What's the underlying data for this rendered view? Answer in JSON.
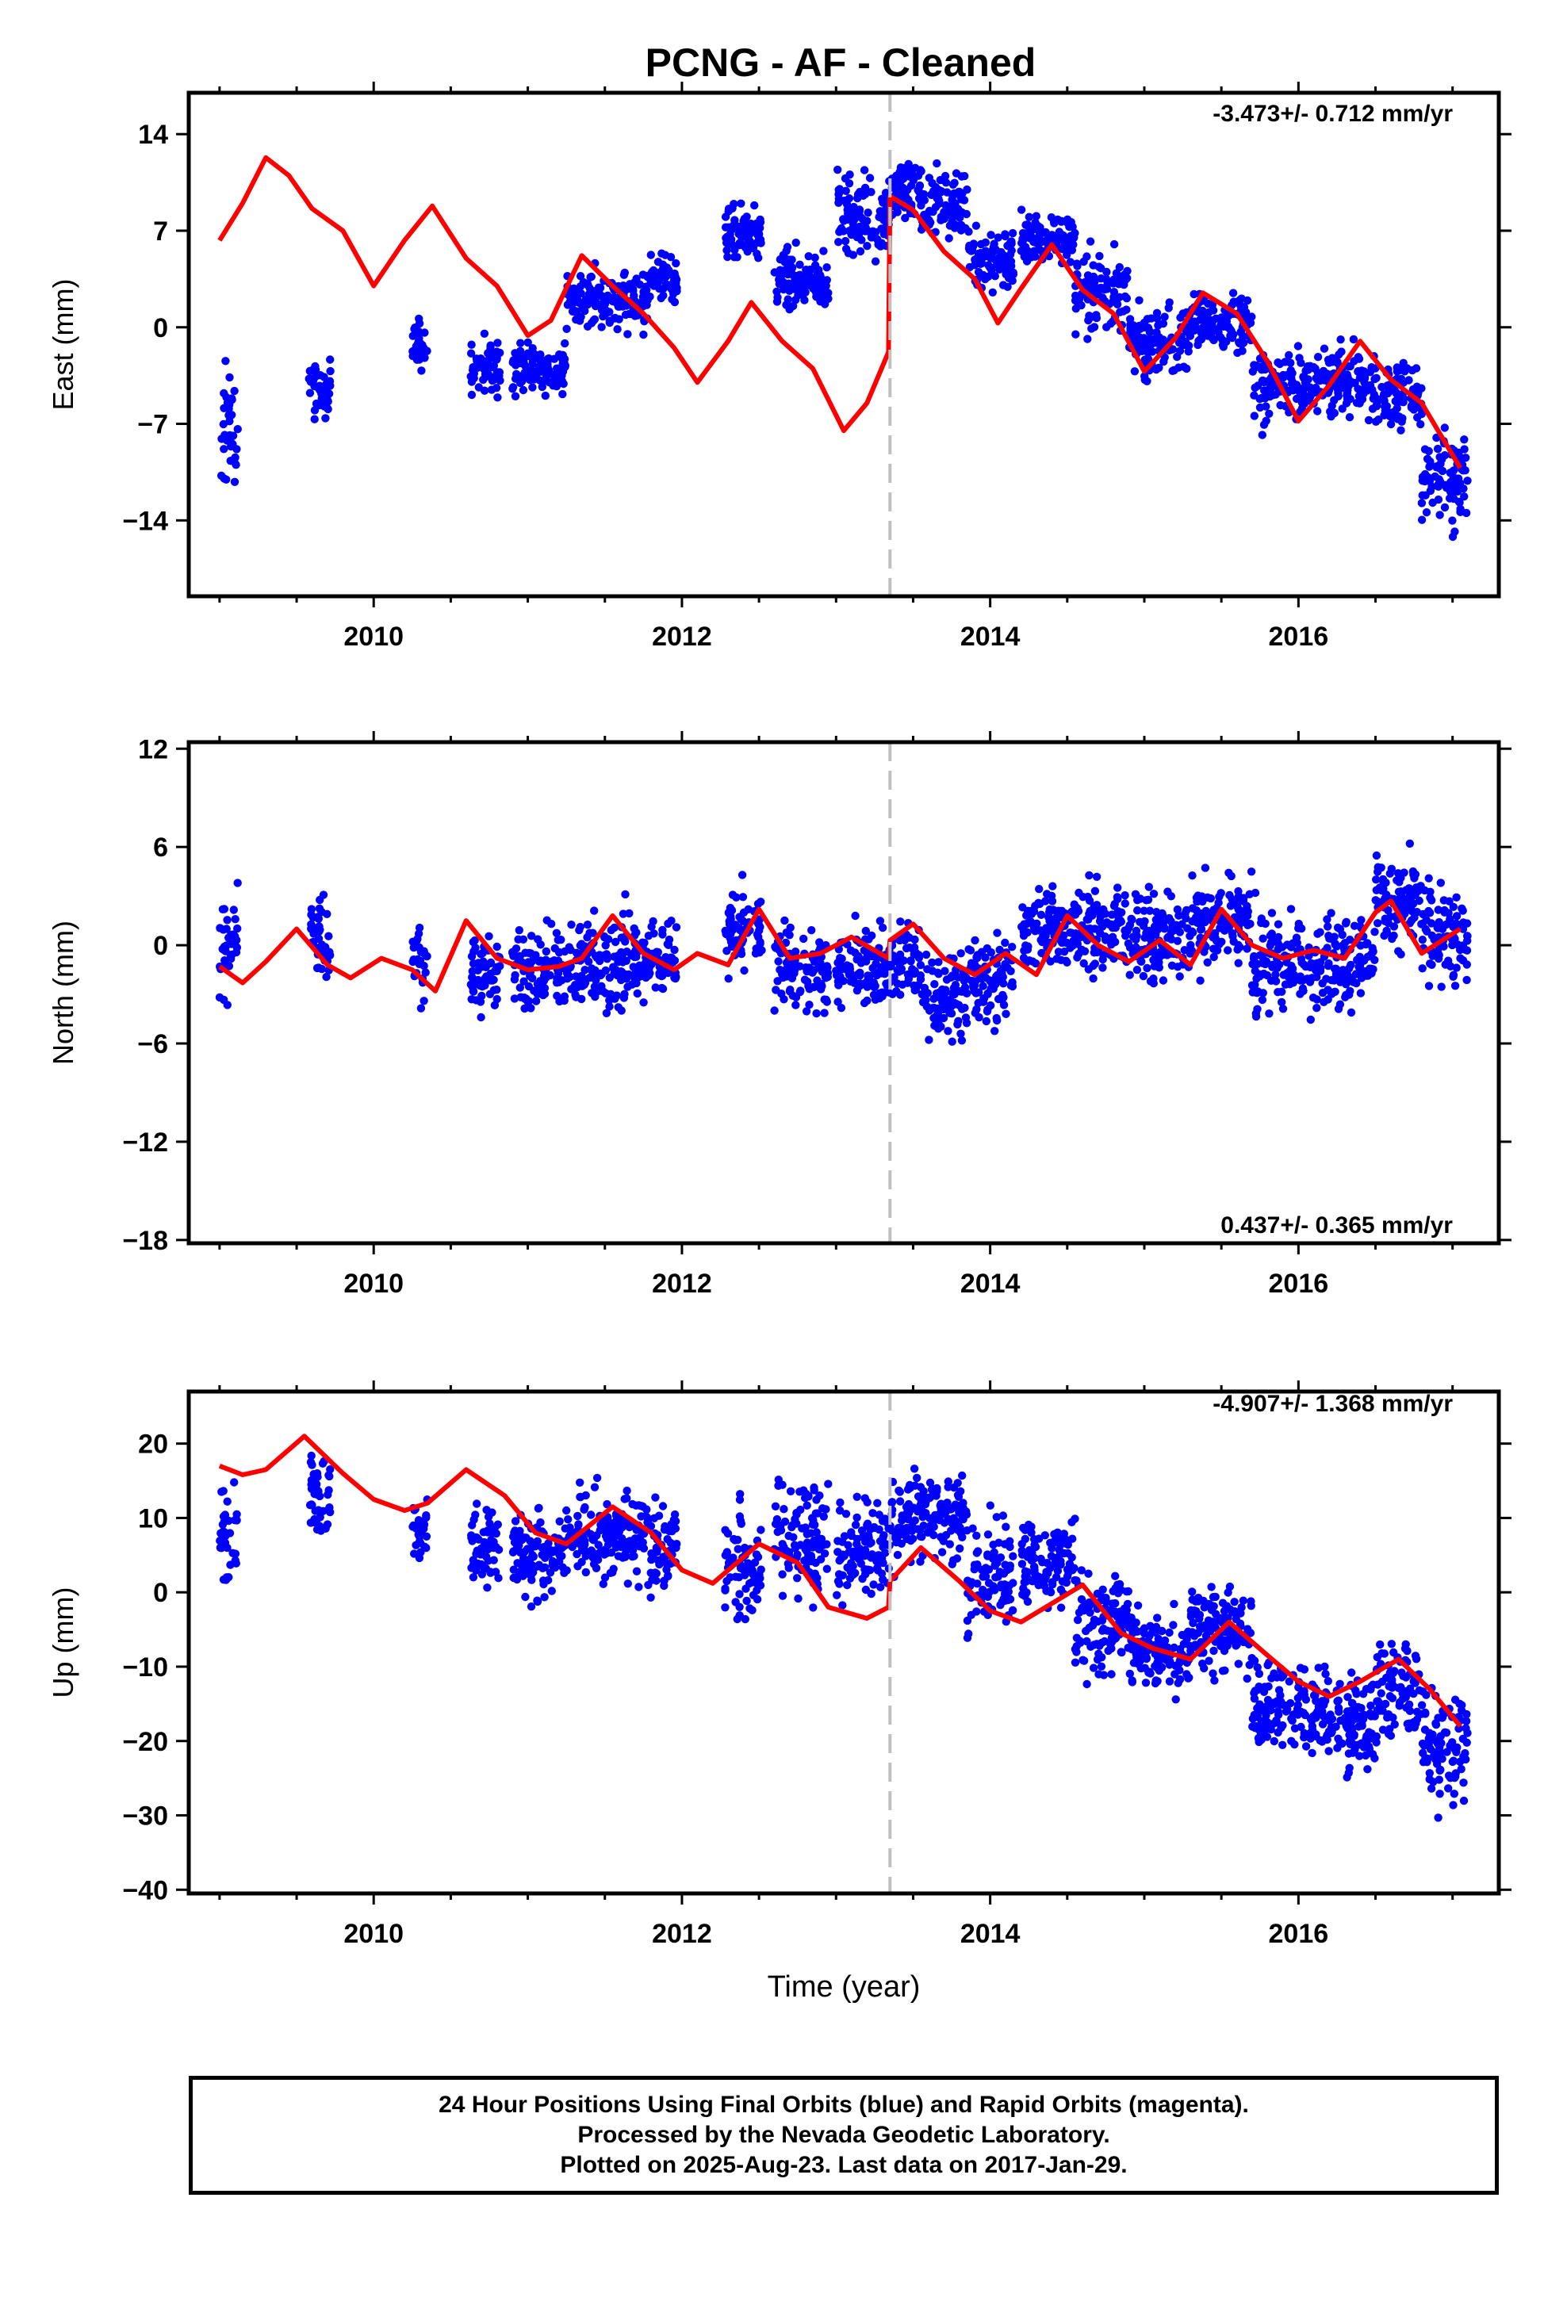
{
  "title": "PCNG  - AF - Cleaned",
  "caption": {
    "line1": "24 Hour Positions Using Final Orbits (blue) and Rapid Orbits (magenta).",
    "line2": "Processed by the Nevada Geodetic Laboratory.",
    "line3": "Plotted on 2025-Aug-23. Last data on 2017-Jan-29."
  },
  "colors": {
    "points": "#0000ff",
    "model": "#ff0000",
    "break_line": "#c0c0c0",
    "frame": "#000000"
  },
  "chart_data": [
    {
      "type": "scatter",
      "ylabel": "East (mm)",
      "xlabel": "",
      "rate_text": "-3.473+/- 0.712 mm/yr",
      "xlim": [
        2008.8,
        2017.3
      ],
      "ylim": [
        -19.5,
        17.0
      ],
      "xticks": [
        2010,
        2012,
        2014,
        2016
      ],
      "yticks": [
        14,
        7,
        0,
        -7,
        -14
      ],
      "ytick_labels": [
        "14",
        "7",
        "0",
        "−7",
        "−14"
      ],
      "break_epoch": 2013.35,
      "series": [
        {
          "kind": "points",
          "segments": [
            {
              "x": [
                2009.0,
                2009.12
              ],
              "center": -7.5,
              "spread": 4.0
            },
            {
              "x": [
                2009.58,
                2009.72
              ],
              "center": -4.5,
              "spread": 1.7
            },
            {
              "x": [
                2010.25,
                2010.35
              ],
              "center": -1.3,
              "spread": 1.6
            },
            {
              "x": [
                2010.63,
                2010.82
              ],
              "center": -2.8,
              "spread": 1.8
            },
            {
              "x": [
                2010.9,
                2011.25
              ],
              "center": -3.0,
              "spread": 1.6
            },
            {
              "x": [
                2011.25,
                2011.78
              ],
              "center": 2.0,
              "spread": 1.8
            },
            {
              "x": [
                2011.78,
                2011.97
              ],
              "center": 3.5,
              "spread": 1.5
            },
            {
              "x": [
                2012.28,
                2012.52
              ],
              "center": 6.5,
              "spread": 1.8
            },
            {
              "x": [
                2012.6,
                2012.95
              ],
              "center": 3.5,
              "spread": 1.9
            },
            {
              "x": [
                2013.0,
                2013.35
              ],
              "center": 8.0,
              "spread": 2.5
            },
            {
              "x": [
                2013.35,
                2013.55
              ],
              "center": 10.0,
              "spread": 1.6
            },
            {
              "x": [
                2013.55,
                2013.85
              ],
              "center": 9.0,
              "spread": 2.3
            },
            {
              "x": [
                2013.85,
                2014.15
              ],
              "center": 5.0,
              "spread": 2.2
            },
            {
              "x": [
                2014.2,
                2014.55
              ],
              "center": 6.5,
              "spread": 1.6
            },
            {
              "x": [
                2014.55,
                2014.9
              ],
              "center": 2.5,
              "spread": 2.3
            },
            {
              "x": [
                2014.9,
                2015.3
              ],
              "center": -1.0,
              "spread": 2.1
            },
            {
              "x": [
                2015.3,
                2015.7
              ],
              "center": 0.5,
              "spread": 1.8
            },
            {
              "x": [
                2015.7,
                2016.05
              ],
              "center": -4.5,
              "spread": 2.3
            },
            {
              "x": [
                2016.05,
                2016.5
              ],
              "center": -4.0,
              "spread": 2.0
            },
            {
              "x": [
                2016.5,
                2016.8
              ],
              "center": -5.0,
              "spread": 2.2
            },
            {
              "x": [
                2016.8,
                2017.1
              ],
              "center": -11.0,
              "spread": 3.0
            }
          ]
        },
        {
          "kind": "model",
          "x": [
            2009.0,
            2009.15,
            2009.3,
            2009.45,
            2009.6,
            2009.8,
            2010.0,
            2010.2,
            2010.38,
            2010.6,
            2010.8,
            2011.0,
            2011.15,
            2011.35,
            2011.55,
            2011.75,
            2011.95,
            2012.1,
            2012.3,
            2012.45,
            2012.65,
            2012.85,
            2013.05,
            2013.2,
            2013.34,
            2013.35,
            2013.5,
            2013.7,
            2013.9,
            2014.05,
            2014.2,
            2014.4,
            2014.6,
            2014.8,
            2015.0,
            2015.2,
            2015.38,
            2015.6,
            2015.8,
            2016.0,
            2016.2,
            2016.4,
            2016.6,
            2016.8,
            2017.05
          ],
          "y": [
            6.3,
            9.0,
            12.3,
            11.0,
            8.6,
            7.0,
            3.0,
            6.3,
            8.8,
            5.0,
            3.0,
            -0.6,
            0.5,
            5.2,
            3.0,
            1.0,
            -1.5,
            -4.0,
            -1.0,
            1.8,
            -1.0,
            -3.0,
            -7.5,
            -5.5,
            -1.8,
            9.5,
            8.5,
            5.5,
            3.5,
            0.3,
            2.8,
            6.0,
            2.7,
            1.0,
            -3.2,
            -0.8,
            2.5,
            1.0,
            -2.5,
            -6.8,
            -4.2,
            -1.0,
            -3.8,
            -5.5,
            -10.2
          ]
        }
      ]
    },
    {
      "type": "scatter",
      "ylabel": "North (mm)",
      "xlabel": "",
      "rate_text": "0.437+/- 0.365 mm/yr",
      "xlim": [
        2008.8,
        2017.3
      ],
      "ylim": [
        -18.2,
        12.4
      ],
      "xticks": [
        2010,
        2012,
        2014,
        2016
      ],
      "yticks": [
        12,
        6,
        0,
        -6,
        -12,
        -18
      ],
      "ytick_labels": [
        "12",
        "6",
        "0",
        "−6",
        "−12",
        "−18"
      ],
      "break_epoch": 2013.35,
      "series": [
        {
          "kind": "points",
          "segments": [
            {
              "x": [
                2009.0,
                2009.12
              ],
              "center": 0.0,
              "spread": 3.0
            },
            {
              "x": [
                2009.58,
                2009.72
              ],
              "center": 0.5,
              "spread": 2.3
            },
            {
              "x": [
                2010.25,
                2010.35
              ],
              "center": -1.0,
              "spread": 2.3
            },
            {
              "x": [
                2010.63,
                2010.82
              ],
              "center": -1.5,
              "spread": 2.0
            },
            {
              "x": [
                2010.9,
                2011.25
              ],
              "center": -1.5,
              "spread": 2.0
            },
            {
              "x": [
                2011.25,
                2011.78
              ],
              "center": -1.0,
              "spread": 2.6
            },
            {
              "x": [
                2011.78,
                2011.97
              ],
              "center": -1.0,
              "spread": 2.0
            },
            {
              "x": [
                2012.28,
                2012.52
              ],
              "center": 1.0,
              "spread": 2.4
            },
            {
              "x": [
                2012.6,
                2012.95
              ],
              "center": -1.5,
              "spread": 2.2
            },
            {
              "x": [
                2013.0,
                2013.35
              ],
              "center": -1.5,
              "spread": 2.0
            },
            {
              "x": [
                2013.35,
                2013.55
              ],
              "center": -1.0,
              "spread": 2.0
            },
            {
              "x": [
                2013.55,
                2013.85
              ],
              "center": -3.0,
              "spread": 2.2
            },
            {
              "x": [
                2013.85,
                2014.15
              ],
              "center": -2.0,
              "spread": 2.2
            },
            {
              "x": [
                2014.2,
                2014.55
              ],
              "center": 1.0,
              "spread": 2.2
            },
            {
              "x": [
                2014.55,
                2014.9
              ],
              "center": 1.0,
              "spread": 2.4
            },
            {
              "x": [
                2014.9,
                2015.3
              ],
              "center": 0.5,
              "spread": 2.4
            },
            {
              "x": [
                2015.3,
                2015.7
              ],
              "center": 1.5,
              "spread": 2.4
            },
            {
              "x": [
                2015.7,
                2016.05
              ],
              "center": -1.0,
              "spread": 2.6
            },
            {
              "x": [
                2016.05,
                2016.5
              ],
              "center": -1.0,
              "spread": 2.6
            },
            {
              "x": [
                2016.5,
                2016.8
              ],
              "center": 2.5,
              "spread": 2.2
            },
            {
              "x": [
                2016.8,
                2017.1
              ],
              "center": 0.5,
              "spread": 2.8
            }
          ]
        },
        {
          "kind": "model",
          "x": [
            2009.0,
            2009.15,
            2009.3,
            2009.5,
            2009.7,
            2009.85,
            2010.05,
            2010.25,
            2010.4,
            2010.6,
            2010.8,
            2011.0,
            2011.2,
            2011.35,
            2011.55,
            2011.75,
            2011.95,
            2012.1,
            2012.3,
            2012.5,
            2012.7,
            2012.9,
            2013.1,
            2013.34,
            2013.35,
            2013.5,
            2013.7,
            2013.9,
            2014.1,
            2014.3,
            2014.5,
            2014.7,
            2014.9,
            2015.1,
            2015.3,
            2015.5,
            2015.7,
            2015.9,
            2016.1,
            2016.3,
            2016.5,
            2016.6,
            2016.8,
            2017.05
          ],
          "y": [
            -1.3,
            -2.3,
            -1.0,
            1.0,
            -1.2,
            -2.0,
            -0.8,
            -1.5,
            -2.8,
            1.5,
            -0.8,
            -1.5,
            -1.3,
            -0.8,
            1.8,
            -0.5,
            -1.5,
            -0.5,
            -1.2,
            2.2,
            -0.8,
            -0.5,
            0.5,
            -0.8,
            0.3,
            1.3,
            -0.8,
            -1.8,
            -0.5,
            -1.8,
            1.8,
            0.0,
            -1.0,
            0.3,
            -1.2,
            2.2,
            0.0,
            -0.8,
            -0.3,
            -0.8,
            2.0,
            2.7,
            -0.5,
            1.0
          ]
        }
      ]
    },
    {
      "type": "scatter",
      "ylabel": "Up (mm)",
      "xlabel": "Time (year)",
      "rate_text": "-4.907+/- 1.368 mm/yr",
      "xlim": [
        2008.8,
        2017.3
      ],
      "ylim": [
        -40.5,
        27.0
      ],
      "xticks": [
        2010,
        2012,
        2014,
        2016
      ],
      "yticks": [
        20,
        10,
        0,
        -10,
        -20,
        -30,
        -40
      ],
      "ytick_labels": [
        "20",
        "10",
        "0",
        "−10",
        "−20",
        "−30",
        "−40"
      ],
      "break_epoch": 2013.35,
      "series": [
        {
          "kind": "points",
          "segments": [
            {
              "x": [
                2009.0,
                2009.12
              ],
              "center": 8.0,
              "spread": 6.0
            },
            {
              "x": [
                2009.58,
                2009.72
              ],
              "center": 13.0,
              "spread": 5.0
            },
            {
              "x": [
                2010.25,
                2010.35
              ],
              "center": 8.0,
              "spread": 5.5
            },
            {
              "x": [
                2010.63,
                2010.82
              ],
              "center": 6.0,
              "spread": 5.0
            },
            {
              "x": [
                2010.9,
                2011.25
              ],
              "center": 5.0,
              "spread": 5.0
            },
            {
              "x": [
                2011.25,
                2011.78
              ],
              "center": 8.0,
              "spread": 5.5
            },
            {
              "x": [
                2011.78,
                2011.97
              ],
              "center": 6.0,
              "spread": 5.0
            },
            {
              "x": [
                2012.28,
                2012.52
              ],
              "center": 3.0,
              "spread": 6.5
            },
            {
              "x": [
                2012.6,
                2012.95
              ],
              "center": 8.0,
              "spread": 7.5
            },
            {
              "x": [
                2013.0,
                2013.35
              ],
              "center": 6.0,
              "spread": 6.0
            },
            {
              "x": [
                2013.35,
                2013.55
              ],
              "center": 10.0,
              "spread": 5.5
            },
            {
              "x": [
                2013.55,
                2013.85
              ],
              "center": 10.0,
              "spread": 5.0
            },
            {
              "x": [
                2013.85,
                2014.15
              ],
              "center": 2.0,
              "spread": 6.5
            },
            {
              "x": [
                2014.2,
                2014.55
              ],
              "center": 4.0,
              "spread": 5.0
            },
            {
              "x": [
                2014.55,
                2014.9
              ],
              "center": -4.0,
              "spread": 6.0
            },
            {
              "x": [
                2014.9,
                2015.3
              ],
              "center": -8.0,
              "spread": 5.0
            },
            {
              "x": [
                2015.3,
                2015.7
              ],
              "center": -5.0,
              "spread": 5.0
            },
            {
              "x": [
                2015.7,
                2016.05
              ],
              "center": -15.0,
              "spread": 5.5
            },
            {
              "x": [
                2016.05,
                2016.5
              ],
              "center": -17.0,
              "spread": 5.5
            },
            {
              "x": [
                2016.5,
                2016.8
              ],
              "center": -13.0,
              "spread": 5.5
            },
            {
              "x": [
                2016.8,
                2017.1
              ],
              "center": -20.0,
              "spread": 6.5
            }
          ]
        },
        {
          "kind": "model",
          "x": [
            2009.0,
            2009.15,
            2009.3,
            2009.55,
            2009.8,
            2010.0,
            2010.2,
            2010.35,
            2010.6,
            2010.85,
            2011.05,
            2011.25,
            2011.55,
            2011.8,
            2012.0,
            2012.2,
            2012.5,
            2012.75,
            2012.95,
            2013.2,
            2013.34,
            2013.35,
            2013.55,
            2013.8,
            2014.0,
            2014.2,
            2014.4,
            2014.6,
            2014.85,
            2015.05,
            2015.3,
            2015.55,
            2015.8,
            2016.0,
            2016.2,
            2016.4,
            2016.65,
            2016.85,
            2017.05
          ],
          "y": [
            17.0,
            15.8,
            16.5,
            21.0,
            16.0,
            12.5,
            11.0,
            12.0,
            16.5,
            13.0,
            8.0,
            6.5,
            11.5,
            8.0,
            3.0,
            1.2,
            6.5,
            4.0,
            -2.0,
            -3.5,
            -2.0,
            1.5,
            6.0,
            1.5,
            -2.5,
            -4.0,
            -1.5,
            1.0,
            -5.5,
            -7.5,
            -9.0,
            -4.0,
            -8.5,
            -12.0,
            -14.0,
            -12.0,
            -9.0,
            -13.0,
            -18.0
          ]
        }
      ]
    }
  ]
}
